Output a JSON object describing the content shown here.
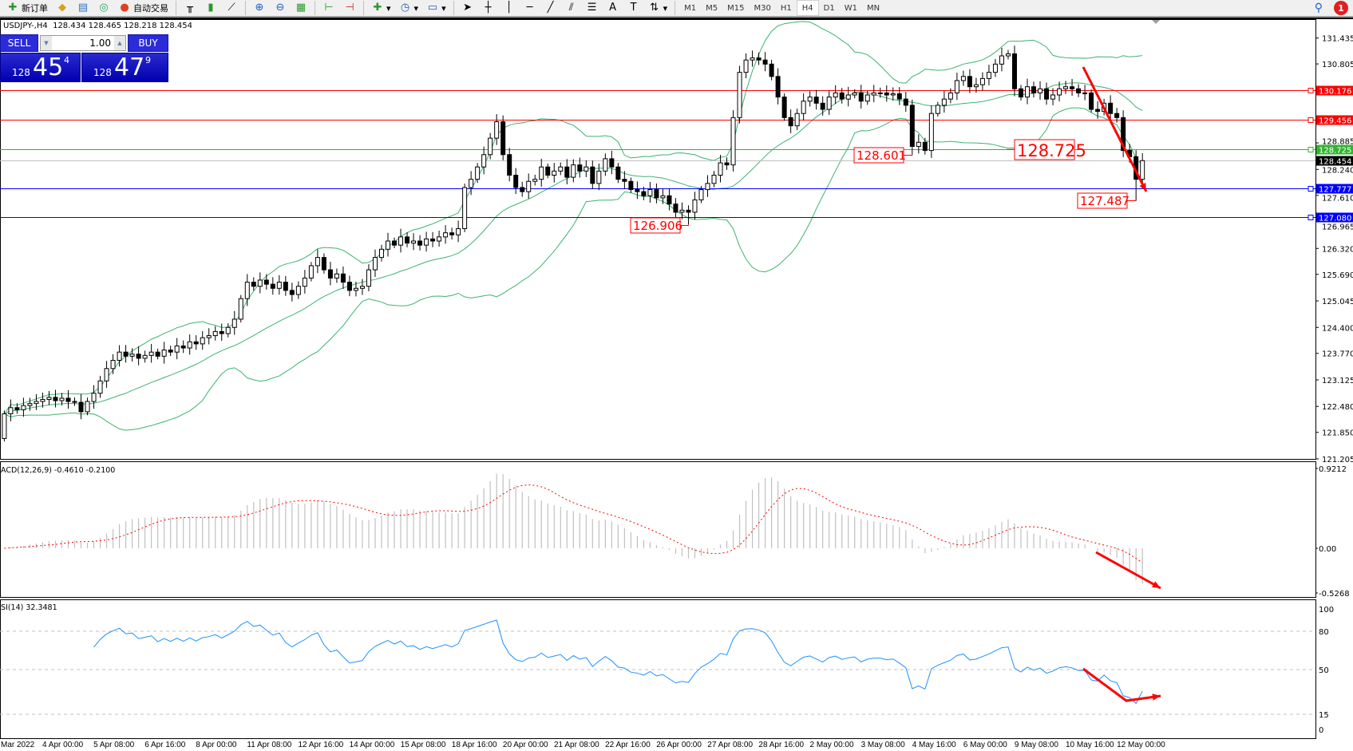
{
  "toolbar": {
    "new_order_label": "新订单",
    "auto_trade_label": "自动交易",
    "timeframes": [
      "M1",
      "M5",
      "M15",
      "M30",
      "H1",
      "H4",
      "D1",
      "W1",
      "MN"
    ],
    "active_timeframe": "H4",
    "notification_count": "1"
  },
  "chart": {
    "title": "USDJPY-,H4  128.434 128.465 128.218 128.454",
    "macd_header": "ACD(12,26,9) -0.4610 -0.2100",
    "rsi_header": "SI(14) 32.3481"
  },
  "trade_panel": {
    "sell_label": "SELL",
    "buy_label": "BUY",
    "lot": "1.00",
    "sell_pre": "128",
    "sell_big": "45",
    "sell_sup": "4",
    "buy_pre": "128",
    "buy_big": "47",
    "buy_sup": "9"
  },
  "price_axis": {
    "ticks": [
      "131.435",
      "130.805",
      "128.885",
      "128.240",
      "127.610",
      "126.965",
      "126.320",
      "125.690",
      "125.045",
      "124.400",
      "123.770",
      "123.125",
      "122.480",
      "121.850",
      "121.205"
    ]
  },
  "levels": [
    {
      "price": "130.176",
      "color": "#ff0000"
    },
    {
      "price": "129.456",
      "color": "#ff0000"
    },
    {
      "price": "128.725",
      "color": "#32b432"
    },
    {
      "price": "128.454",
      "color": "#000000",
      "line": "#c0c0c0"
    },
    {
      "price": "127.777",
      "color": "#0000ff"
    },
    {
      "price": "127.080",
      "color": "#0000ff"
    }
  ],
  "annotations": [
    {
      "text": "126.906",
      "bar": 107
    },
    {
      "text": "128.601",
      "bar": 142
    },
    {
      "text": "128.725",
      "bar": 142,
      "large": true
    },
    {
      "text": "127.487",
      "bar": 177
    }
  ],
  "macd_axis": [
    "0.9212",
    "0.00",
    "-0.5268"
  ],
  "rsi_axis": [
    "100",
    "80",
    "50",
    "15",
    "0"
  ],
  "date_labels": [
    "Mar 2022",
    "4 Apr 00:00",
    "5 Apr 08:00",
    "6 Apr 16:00",
    "8 Apr 00:00",
    "11 Apr 08:00",
    "12 Apr 16:00",
    "14 Apr 00:00",
    "15 Apr 08:00",
    "18 Apr 16:00",
    "20 Apr 00:00",
    "21 Apr 08:00",
    "22 Apr 16:00",
    "26 Apr 00:00",
    "27 Apr 08:00",
    "28 Apr 16:00",
    "2 May 00:00",
    "3 May 08:00",
    "4 May 16:00",
    "6 May 00:00",
    "9 May 08:00",
    "10 May 16:00",
    "12 May 00:00"
  ],
  "colors": {
    "bands": "#3cb371",
    "macd_hist": "#c0c0c0",
    "macd_signal": "#ff0000",
    "rsi": "#1e90ff",
    "arrow": "#ff0000"
  },
  "chart_data": {
    "type": "candlestick",
    "symbol": "USDJPY-",
    "timeframe": "H4",
    "ylim": [
      121.205,
      131.435
    ],
    "closes": [
      122.3,
      122.45,
      122.4,
      122.5,
      122.55,
      122.6,
      122.65,
      122.7,
      122.62,
      122.68,
      122.6,
      122.58,
      122.35,
      122.6,
      122.8,
      123.1,
      123.4,
      123.6,
      123.8,
      123.7,
      123.75,
      123.65,
      123.72,
      123.8,
      123.7,
      123.85,
      123.8,
      123.95,
      123.9,
      124.05,
      124.0,
      124.15,
      124.2,
      124.3,
      124.25,
      124.4,
      124.6,
      125.1,
      125.5,
      125.4,
      125.55,
      125.45,
      125.35,
      125.5,
      125.3,
      125.2,
      125.4,
      125.6,
      125.9,
      126.1,
      125.8,
      125.6,
      125.7,
      125.5,
      125.3,
      125.35,
      125.4,
      125.8,
      126.1,
      126.3,
      126.5,
      126.4,
      126.6,
      126.45,
      126.5,
      126.4,
      126.55,
      126.5,
      126.6,
      126.7,
      126.65,
      126.8,
      127.8,
      128.0,
      128.3,
      128.6,
      129.0,
      129.4,
      128.6,
      128.1,
      127.8,
      127.7,
      127.95,
      128.0,
      128.3,
      128.1,
      128.2,
      128.3,
      128.05,
      128.35,
      128.2,
      128.3,
      127.9,
      128.2,
      128.5,
      128.3,
      128.0,
      127.95,
      127.75,
      127.7,
      127.6,
      127.75,
      127.55,
      127.6,
      127.4,
      127.2,
      127.25,
      127.2,
      127.5,
      127.75,
      127.9,
      128.1,
      128.4,
      128.35,
      129.5,
      130.6,
      130.9,
      130.95,
      130.9,
      130.8,
      130.5,
      130.0,
      129.5,
      129.3,
      129.6,
      129.9,
      130.0,
      129.85,
      129.7,
      130.0,
      130.1,
      129.95,
      130.05,
      130.1,
      129.9,
      130.05,
      130.1,
      130.1,
      130.05,
      130.08,
      129.95,
      129.8,
      128.8,
      128.9,
      128.7,
      129.6,
      129.8,
      129.95,
      130.1,
      130.4,
      130.5,
      130.25,
      130.3,
      130.45,
      130.6,
      130.8,
      131.0,
      131.05,
      130.2,
      130.0,
      130.25,
      130.1,
      130.2,
      129.95,
      130.05,
      130.2,
      130.25,
      130.2,
      130.1,
      130.1,
      129.7,
      129.65,
      129.85,
      129.6,
      129.5,
      128.7,
      128.55,
      128.0,
      128.454
    ]
  }
}
